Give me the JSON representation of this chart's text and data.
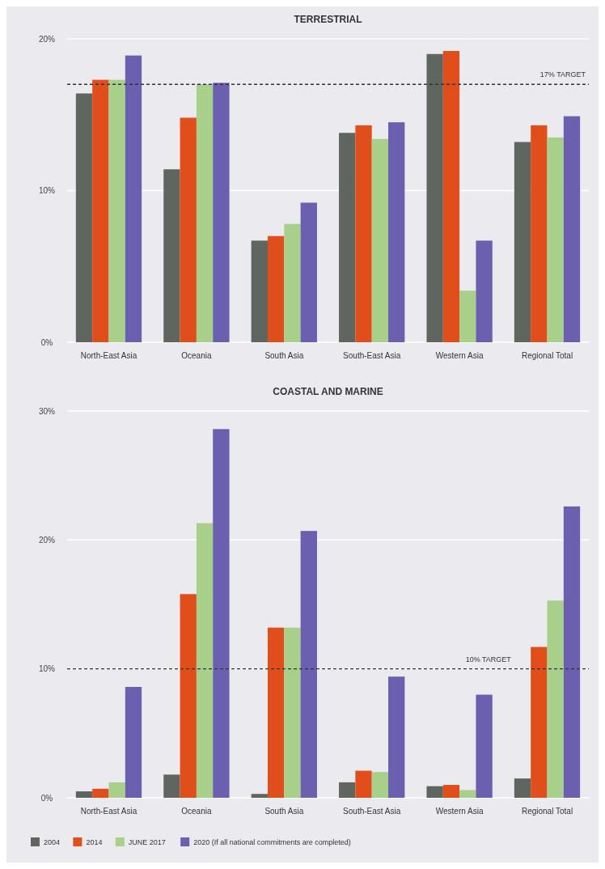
{
  "chart_data": [
    {
      "type": "bar",
      "title": "TERRESTRIAL",
      "categories": [
        "North-East Asia",
        "Oceania",
        "South Asia",
        "South-East Asia",
        "Western Asia",
        "Regional Total"
      ],
      "series": [
        {
          "color": "#5f6660",
          "values": [
            16.4,
            11.4,
            6.7,
            13.8,
            19.0,
            13.2
          ]
        },
        {
          "color": "#e04e1c",
          "values": [
            17.3,
            14.8,
            7.0,
            14.3,
            19.2,
            14.3
          ]
        },
        {
          "color": "#a8d08a",
          "values": [
            17.3,
            17.0,
            7.8,
            13.4,
            3.4,
            13.5
          ]
        },
        {
          "color": "#6b5fb0",
          "values": [
            18.9,
            17.1,
            9.2,
            14.5,
            6.7,
            14.9
          ]
        }
      ],
      "ylim": [
        0,
        20
      ],
      "yticks": [
        {
          "value": 0,
          "label": "0%"
        },
        {
          "value": 10,
          "label": "10%"
        },
        {
          "value": 20,
          "label": "20%"
        }
      ],
      "grid": "y",
      "ref_lines": [
        {
          "axis": "y",
          "value": 17,
          "label": "17% TARGET",
          "color": "#333333",
          "line_style": "dashed"
        }
      ]
    },
    {
      "type": "bar",
      "title": "COASTAL AND MARINE",
      "categories": [
        "North-East Asia",
        "Oceania",
        "South Asia",
        "South-East Asia",
        "Western Asia",
        "Regional Total"
      ],
      "series": [
        {
          "name": "2004",
          "color": "#5f6660",
          "values": [
            0.5,
            1.8,
            0.3,
            1.2,
            0.9,
            1.5
          ]
        },
        {
          "name": "2014",
          "color": "#e04e1c",
          "values": [
            0.7,
            15.8,
            13.2,
            2.1,
            1.0,
            11.7
          ]
        },
        {
          "name": "JUNE 2017",
          "color": "#a8d08a",
          "values": [
            1.2,
            21.3,
            13.2,
            2.0,
            0.6,
            15.3
          ]
        },
        {
          "name": "2020 (If all national commitments are completed)",
          "color": "#6b5fb0",
          "values": [
            8.6,
            28.6,
            20.7,
            9.4,
            8.0,
            22.6
          ]
        }
      ],
      "ylim": [
        0,
        30
      ],
      "yticks": [
        {
          "value": 0,
          "label": "0%"
        },
        {
          "value": 10,
          "label": "10%"
        },
        {
          "value": 20,
          "label": "20%"
        },
        {
          "value": 30,
          "label": "30%"
        }
      ],
      "grid": "y",
      "legend": "bottom",
      "ref_lines": [
        {
          "axis": "y",
          "value": 10,
          "label": "10% TARGET",
          "color": "#333333",
          "line_style": "dashed"
        }
      ]
    }
  ]
}
